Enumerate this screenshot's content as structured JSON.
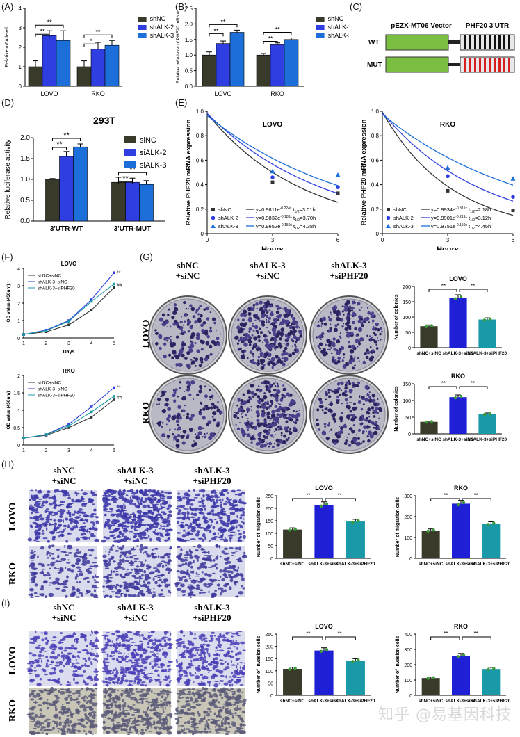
{
  "colors": {
    "shNC": "#3a3a2a",
    "alk2": "#2f3ee0",
    "alk3": "#1c6fd8",
    "teal": "#1a9aa8",
    "ok": "#1f1fd6",
    "green": "#3a9a3a"
  },
  "panel_labels": {
    "A": "(A)",
    "B": "(B)",
    "C": "(C)",
    "D": "(D)",
    "E": "(E)",
    "F": "(F)",
    "G": "(G)",
    "H": "(H)",
    "I": "(I)"
  },
  "legend3": [
    "shNC",
    "shALK-2",
    "shALK-3"
  ],
  "legendD": [
    "siNC",
    "siALK-2",
    "siALK-3"
  ],
  "sig": {
    "dbl": "**",
    "single": "*",
    "hash": "##"
  },
  "panelC": {
    "vector": "pEZX-MT06 Vector",
    "utr": "PHF20 3'UTR",
    "wt": "WT",
    "mut": "MUT"
  },
  "panelE": {
    "lovo_title": "LOVO",
    "rko_title": "RKO",
    "ylabel": "Relative PHF20 mRNA expression",
    "xlabel": "Hours",
    "lovo_eqs": [
      "y=0.9811e",
      "y=0.9832e",
      "y=0.9652e"
    ],
    "lovo_exp": [
      "-0.224x",
      "-0.183x",
      "-0.150x"
    ],
    "lovo_half": [
      "=3.01h",
      "=3.70h",
      "=4.38h"
    ],
    "rko_eqs": [
      "y=0.9934e",
      "y=0.9901e",
      "y=0.9751e"
    ],
    "rko_exp": [
      "-0.315x",
      "-0.219x",
      "-0.150x"
    ],
    "rko_half": [
      "=2.18h",
      "=3.12h",
      "=4.45h"
    ],
    "t12": "t",
    "t12sub": "1/2"
  },
  "panelF": {
    "lovo": "LOVO",
    "rko": "RKO",
    "ylabel": "OD value (450nm)",
    "xlabel": "Days",
    "legend": [
      "shNC+siNC",
      "shALK-3+siNC",
      "shALK-3+siPHF20"
    ]
  },
  "conds": [
    "shNC\n+siNC",
    "shALK-3\n+siNC",
    "shALK-3\n+siPHF20"
  ],
  "cond_lines": [
    [
      "shNC",
      "+siNC"
    ],
    [
      "shALK-3",
      "+siNC"
    ],
    [
      "shALK-3",
      "+siPHF20"
    ]
  ],
  "row_labels": {
    "lovo": "LOVO",
    "rko": "RKO"
  },
  "bar_xlabels": [
    "shNC+siNC",
    "shALK-3+siNC",
    "shALK-3+siPHF20"
  ],
  "panelG": {
    "ylabel": "Number of colonies",
    "lovo": "LOVO",
    "rko": "RKO"
  },
  "panelH": {
    "ylabel": "Number of migration cells",
    "lovo": "LOVO",
    "rko": "RKO"
  },
  "panelI": {
    "ylabel": "Number of invasion cells",
    "lovo": "LOVO",
    "rko": "RKO"
  },
  "watermark": "知乎 @易基因科技",
  "chart_data": [
    {
      "id": "A",
      "type": "bar",
      "title": "",
      "ylabel": "Relative m6A level",
      "categories": [
        "LOVO",
        "RKO"
      ],
      "ylim": [
        0,
        4
      ],
      "yticks": [
        0,
        1,
        2,
        3,
        4
      ],
      "series": [
        {
          "name": "shNC",
          "values": [
            1.0,
            1.0
          ],
          "err": [
            0.3,
            0.3
          ]
        },
        {
          "name": "shALK-2",
          "values": [
            2.6,
            1.9
          ],
          "err": [
            0.25,
            0.35
          ]
        },
        {
          "name": "shALK-3",
          "values": [
            2.35,
            2.1
          ],
          "err": [
            0.5,
            0.25
          ]
        }
      ]
    },
    {
      "id": "B",
      "type": "bar",
      "title": "",
      "ylabel": "Relative m6A level of PHF20 mRNA",
      "categories": [
        "LOVO",
        "RKO"
      ],
      "ylim": [
        0,
        2.5
      ],
      "yticks": [
        0,
        0.5,
        1.0,
        1.5,
        2.0,
        2.5
      ],
      "series": [
        {
          "name": "shNC",
          "values": [
            1.0,
            1.0
          ],
          "err": [
            0.1,
            0.05
          ]
        },
        {
          "name": "shALK-2",
          "values": [
            1.37,
            1.33
          ],
          "err": [
            0.08,
            0.06
          ]
        },
        {
          "name": "shALK-3",
          "values": [
            1.73,
            1.5
          ],
          "err": [
            0.07,
            0.05
          ]
        }
      ]
    },
    {
      "id": "D",
      "type": "bar",
      "title": "293T",
      "ylabel": "Relative luciferase activity",
      "categories": [
        "3'UTR-WT",
        "3'UTR-MUT"
      ],
      "ylim": [
        0,
        2.0
      ],
      "yticks": [
        0,
        0.5,
        1.0,
        1.5,
        2.0
      ],
      "series": [
        {
          "name": "siNC",
          "values": [
            1.0,
            0.93
          ],
          "err": [
            0.02,
            0.12
          ]
        },
        {
          "name": "siALK-2",
          "values": [
            1.55,
            0.93
          ],
          "err": [
            0.12,
            0.1
          ]
        },
        {
          "name": "siALK-3",
          "values": [
            1.78,
            0.88
          ],
          "err": [
            0.07,
            0.09
          ]
        }
      ]
    },
    {
      "id": "E-LOVO",
      "type": "line",
      "x": [
        0,
        3,
        6
      ],
      "ylim": [
        0,
        1.0
      ],
      "yticks": [
        0,
        0.2,
        0.4,
        0.6,
        0.8,
        1.0
      ],
      "xticks": [
        0,
        3,
        6
      ],
      "series": [
        {
          "name": "shNC",
          "k": 0.224,
          "a": 0.9811,
          "points": [
            0.42,
            0.33
          ]
        },
        {
          "name": "shALK-2",
          "k": 0.183,
          "a": 0.9832,
          "points": [
            0.46,
            0.38
          ]
        },
        {
          "name": "shALK-3",
          "k": 0.15,
          "a": 0.9652,
          "points": [
            0.51,
            0.48
          ]
        }
      ]
    },
    {
      "id": "E-RKO",
      "type": "line",
      "x": [
        0,
        3,
        6
      ],
      "ylim": [
        0,
        1.0
      ],
      "yticks": [
        0,
        0.2,
        0.4,
        0.6,
        0.8,
        1.0
      ],
      "xticks": [
        0,
        3,
        6
      ],
      "series": [
        {
          "name": "shNC",
          "k": 0.315,
          "a": 0.9934,
          "points": [
            0.35,
            0.19
          ]
        },
        {
          "name": "shALK-2",
          "k": 0.219,
          "a": 0.9901,
          "points": [
            0.47,
            0.3
          ]
        },
        {
          "name": "shALK-3",
          "k": 0.15,
          "a": 0.9751,
          "points": [
            0.54,
            0.45
          ]
        }
      ]
    },
    {
      "id": "F-LOVO",
      "type": "line",
      "x": [
        1,
        2,
        3,
        4,
        5
      ],
      "ylim": [
        0,
        4
      ],
      "yticks": [
        0,
        1,
        2,
        3,
        4
      ],
      "series": [
        {
          "name": "shNC+siNC",
          "values": [
            0.2,
            0.35,
            0.75,
            1.6,
            2.9
          ]
        },
        {
          "name": "shALK-3+siNC",
          "values": [
            0.2,
            0.45,
            1.0,
            2.2,
            3.75
          ]
        },
        {
          "name": "shALK-3+siPHF20",
          "values": [
            0.2,
            0.42,
            0.95,
            2.1,
            3.1
          ]
        }
      ]
    },
    {
      "id": "F-RKO",
      "type": "line",
      "x": [
        1,
        2,
        3,
        4,
        5
      ],
      "ylim": [
        0,
        2.0
      ],
      "yticks": [
        0,
        0.5,
        1.0,
        1.5,
        2.0
      ],
      "series": [
        {
          "name": "shNC+siNC",
          "values": [
            0.2,
            0.28,
            0.5,
            0.8,
            1.3
          ]
        },
        {
          "name": "shALK-3+siNC",
          "values": [
            0.2,
            0.3,
            0.6,
            1.1,
            1.65
          ]
        },
        {
          "name": "shALK-3+siPHF20",
          "values": [
            0.2,
            0.3,
            0.55,
            0.95,
            1.4
          ]
        }
      ]
    },
    {
      "id": "G-LOVO",
      "type": "bar",
      "ylim": [
        0,
        200
      ],
      "yticks": [
        0,
        50,
        100,
        150,
        200
      ],
      "values": [
        70,
        163,
        92
      ]
    },
    {
      "id": "G-RKO",
      "type": "bar",
      "ylim": [
        0,
        150
      ],
      "yticks": [
        0,
        50,
        100,
        150
      ],
      "values": [
        36,
        110,
        59
      ]
    },
    {
      "id": "H-LOVO",
      "type": "bar",
      "ylim": [
        0,
        250
      ],
      "yticks": [
        0,
        50,
        100,
        150,
        200,
        250
      ],
      "values": [
        115,
        213,
        147
      ]
    },
    {
      "id": "H-RKO",
      "type": "bar",
      "ylim": [
        0,
        300
      ],
      "yticks": [
        0,
        100,
        200,
        300
      ],
      "values": [
        133,
        262,
        165
      ]
    },
    {
      "id": "I-LOVO",
      "type": "bar",
      "ylim": [
        0,
        250
      ],
      "yticks": [
        0,
        50,
        100,
        150,
        200,
        250
      ],
      "values": [
        108,
        183,
        141
      ]
    },
    {
      "id": "I-RKO",
      "type": "bar",
      "ylim": [
        0,
        400
      ],
      "yticks": [
        0,
        100,
        200,
        300,
        400
      ],
      "values": [
        113,
        258,
        172
      ]
    }
  ]
}
